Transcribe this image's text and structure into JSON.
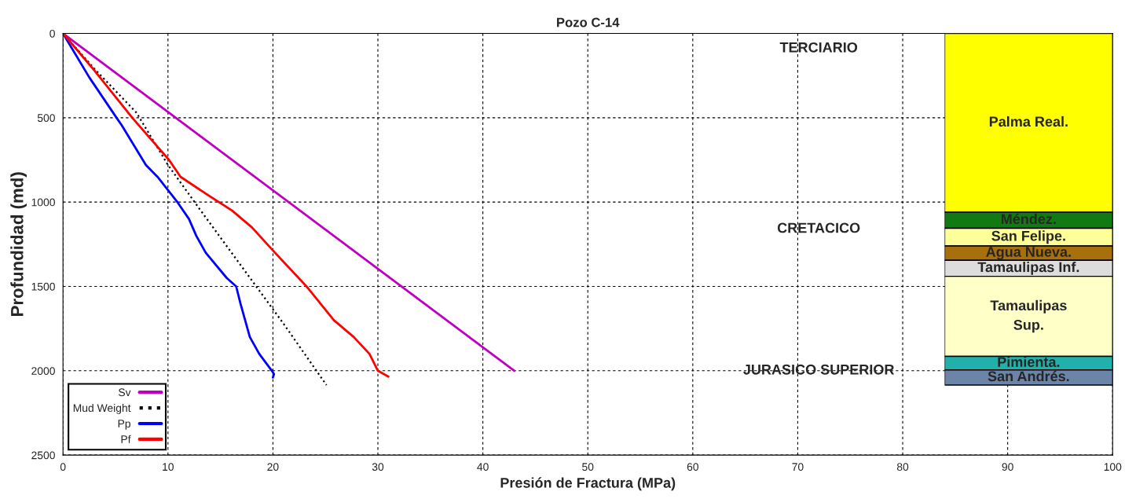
{
  "chart_data": [
    {
      "type": "line",
      "title": "Pozo C-14",
      "xlabel": "Presión de Fractura (MPa)",
      "ylabel": "Profundidad (md)",
      "xlim": [
        0,
        100
      ],
      "xticks": [
        0,
        10,
        20,
        30,
        40,
        50,
        60,
        70,
        80,
        90,
        100
      ],
      "ylim": [
        2500,
        0
      ],
      "yticks": [
        0,
        500,
        1000,
        1500,
        2000,
        2500
      ],
      "grid": true,
      "legend": "bottom left",
      "series": [
        {
          "name": "Sv",
          "color": "#c000c0",
          "line_style": "solid",
          "x": [
            0,
            43
          ],
          "values": [
            0,
            2000
          ]
        },
        {
          "name": "Mud Weight",
          "color": "#000000",
          "line_style": "dotted",
          "x": [
            0,
            3,
            7,
            10,
            13,
            17,
            21,
            25.1
          ],
          "values": [
            0,
            210,
            470,
            780,
            1040,
            1380,
            1720,
            2085
          ]
        },
        {
          "name": "Pp",
          "color": "#0000ff",
          "line_style": "solid",
          "x": [
            0,
            2.5,
            5.1,
            5.6,
            7.9,
            9.0,
            10.9,
            12.0,
            12.7,
            13.6,
            15.6,
            16.5,
            16.9,
            17.8,
            18.7,
            19.9,
            20.1,
            20.0
          ],
          "values": [
            0,
            260,
            500,
            545,
            780,
            850,
            1000,
            1100,
            1200,
            1300,
            1450,
            1500,
            1600,
            1800,
            1900,
            2000,
            2020,
            2040
          ]
        },
        {
          "name": "Pf",
          "color": "#ff0000",
          "line_style": "solid",
          "x": [
            0,
            3,
            6.6,
            7.3,
            10.1,
            11.2,
            13.6,
            16.1,
            18.0,
            20.2,
            23.2,
            25.8,
            27.7,
            29.2,
            30.0,
            31.0
          ],
          "values": [
            0,
            220,
            500,
            550,
            750,
            850,
            950,
            1050,
            1150,
            1300,
            1500,
            1700,
            1800,
            1900,
            2000,
            2035
          ]
        }
      ],
      "annotations": [
        "TERCIARIO",
        "CRETACICO",
        "JURASICO SUPERIOR"
      ]
    },
    {
      "type": "bar",
      "stacked": true,
      "categories": [
        null
      ],
      "ylim": [
        2500,
        0
      ],
      "tick_labels": false,
      "legend": false,
      "series": [
        {
          "name": "Palma Real.",
          "color": "#ffff00",
          "values": [
            1060
          ]
        },
        {
          "name": "Méndez.",
          "color": "#127a12",
          "values": [
            95
          ]
        },
        {
          "name": "San Felipe.",
          "color": "#ffff99",
          "values": [
            105
          ]
        },
        {
          "name": "Agua Nueva.",
          "color": "#a8700c",
          "values": [
            85
          ]
        },
        {
          "name": "Tamaulipas Inf.",
          "color": "#dddddd",
          "values": [
            95
          ]
        },
        {
          "name": "Tamaulipas\nSup.",
          "color": "#ffffc8",
          "values": [
            475
          ]
        },
        {
          "name": "Pimienta.",
          "color": "#20b2aa",
          "values": [
            80
          ]
        },
        {
          "name": "San Andrés.",
          "color": "#6b84a8",
          "values": [
            90
          ]
        }
      ]
    }
  ]
}
